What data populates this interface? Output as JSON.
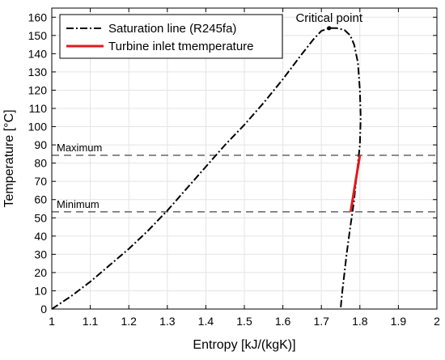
{
  "chart_data": {
    "type": "line",
    "xlabel": "Entropy [kJ/(kgK)]",
    "ylabel": "Temperature [°C]",
    "xlim": [
      1,
      2
    ],
    "ylim": [
      0,
      165
    ],
    "xticks": [
      "1",
      "1.1",
      "1.2",
      "1.3",
      "1.4",
      "1.5",
      "1.6",
      "1.7",
      "1.8",
      "1.9",
      "2"
    ],
    "yticks": [
      "0",
      "10",
      "20",
      "30",
      "40",
      "50",
      "60",
      "70",
      "80",
      "90",
      "100",
      "110",
      "120",
      "130",
      "140",
      "150",
      "160"
    ],
    "grid": true,
    "legend_position": "top-left",
    "series": [
      {
        "name": "Saturation line (R245fa)",
        "style": "dash-dot",
        "color": "#000000",
        "x": [
          1.0,
          1.05,
          1.1,
          1.15,
          1.2,
          1.25,
          1.3,
          1.35,
          1.4,
          1.45,
          1.5,
          1.55,
          1.6,
          1.65,
          1.68,
          1.7,
          1.72,
          1.74,
          1.76,
          1.775,
          1.785,
          1.795,
          1.8,
          1.802,
          1.8,
          1.795,
          1.79,
          1.785,
          1.78,
          1.775,
          1.77,
          1.765,
          1.76,
          1.755,
          1.752,
          1.75
        ],
        "y": [
          0,
          7,
          15,
          24,
          33,
          43,
          54,
          66,
          78,
          90,
          101,
          113,
          126,
          140,
          148,
          152.5,
          154,
          154,
          153,
          150,
          145,
          135,
          120,
          105,
          90,
          80,
          70,
          60,
          52,
          45,
          37,
          29,
          20,
          11,
          5,
          0
        ]
      },
      {
        "name": "Turbine inlet tmemperature",
        "style": "solid",
        "color": "#e0191e",
        "x": [
          1.776,
          1.8
        ],
        "y": [
          53.3,
          84.3
        ]
      }
    ],
    "reference_lines": [
      {
        "label": "Maximum",
        "y": 84.3,
        "style": "dashed",
        "color": "#707070"
      },
      {
        "label": "Minimum",
        "y": 53.3,
        "style": "dashed",
        "color": "#707070"
      }
    ],
    "critical_point": {
      "label": "Critical point",
      "x": 1.72,
      "y": 154
    }
  }
}
